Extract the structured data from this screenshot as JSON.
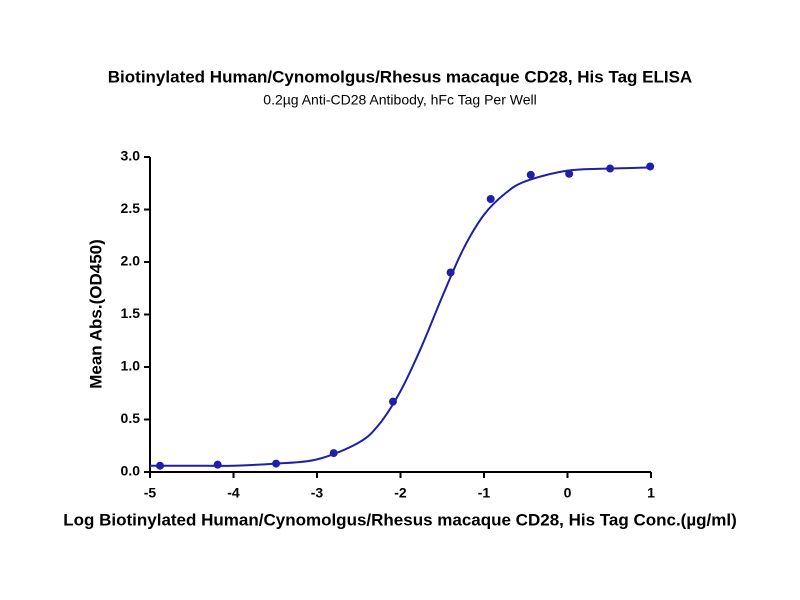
{
  "chart_data": {
    "type": "scatter",
    "title": "Biotinylated Human/Cynomolgus/Rhesus macaque CD28, His Tag ELISA",
    "subtitle": "0.2µg Anti-CD28 Antibody, hFc Tag Per Well",
    "x_label": "Log Biotinylated Human/Cynomolgus/Rhesus macaque CD28, His Tag Conc.(µg/ml)",
    "y_label": "Mean Abs.(OD450)",
    "xlim": [
      -5,
      1
    ],
    "ylim": [
      0,
      3
    ],
    "xticks": [
      -5,
      -4,
      -3,
      -2,
      -1,
      0,
      1
    ],
    "yticks": [
      {
        "value": 0,
        "label": "0.0"
      },
      0.5,
      {
        "value": 1,
        "label": "1.0"
      },
      1.5,
      {
        "value": 2,
        "label": "2.0"
      },
      2.5,
      {
        "value": 3,
        "label": "3.0"
      }
    ],
    "grid": false,
    "series": [
      {
        "mode": "markers",
        "color": "#1f1fa8",
        "x": [
          -4.88,
          -4.19,
          -3.49,
          -2.8,
          -2.09,
          -1.4,
          -0.92,
          -0.44,
          0.02,
          0.51,
          0.99
        ],
        "values": [
          0.06,
          0.07,
          0.08,
          0.18,
          0.67,
          1.9,
          2.6,
          2.83,
          2.84,
          2.89,
          2.91
        ]
      },
      {
        "mode": "line",
        "color": "#1f1fa8",
        "x": [
          -5,
          -4.5,
          -4,
          -3.5,
          -3,
          -2.5,
          -2.25,
          -2,
          -1.75,
          -1.5,
          -1.25,
          -1,
          -0.75,
          -0.5,
          0,
          0.5,
          1
        ],
        "values": [
          0.06,
          0.06,
          0.06,
          0.08,
          0.12,
          0.28,
          0.46,
          0.77,
          1.19,
          1.67,
          2.12,
          2.45,
          2.65,
          2.77,
          2.87,
          2.89,
          2.9
        ]
      }
    ]
  }
}
